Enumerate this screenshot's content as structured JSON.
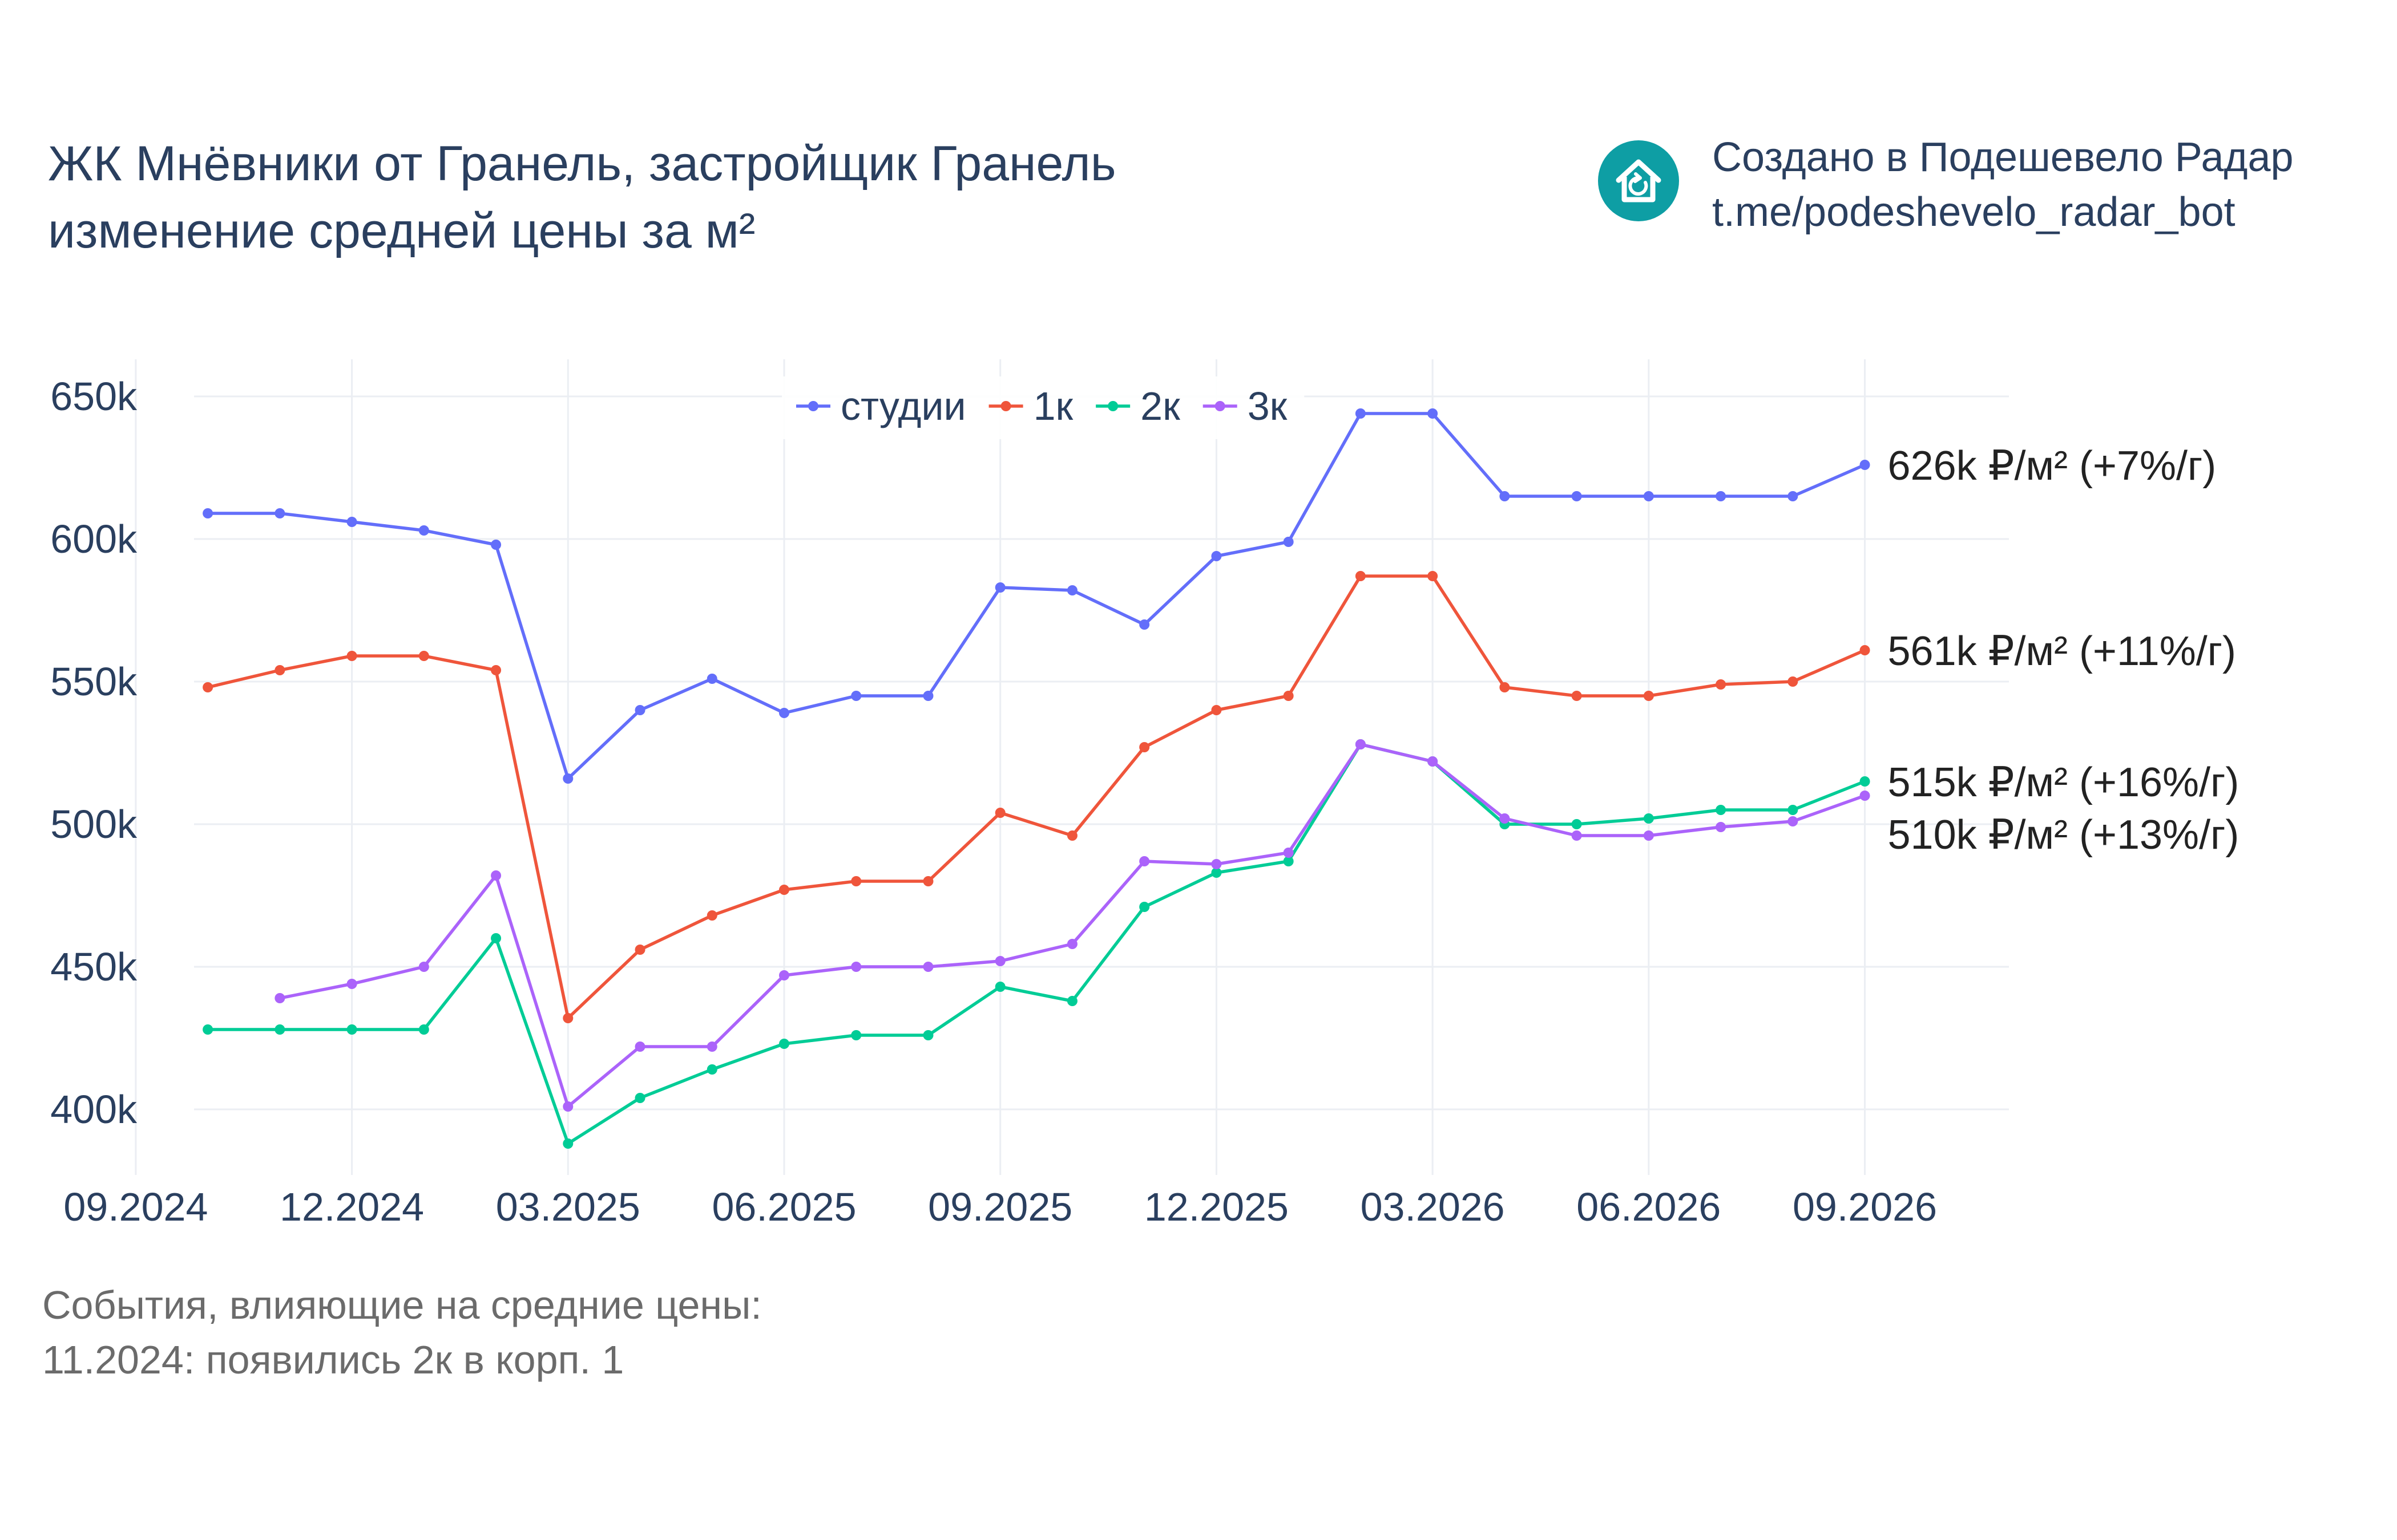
{
  "header": {
    "title_line1": "ЖК Мнёвники от Гранель, застройщик Гранель",
    "title_line2": "изменение средней цены за м²"
  },
  "brand": {
    "line1": "Создано в Подешевело Радар",
    "line2": "t.me/podeshevelo_radar_bot",
    "logo_icon": "house-refresh-icon",
    "logo_color": "#0e9ea4"
  },
  "events": {
    "heading": "События, влияющие на средние цены:",
    "items": [
      "11.2024: появились 2к в корп. 1"
    ]
  },
  "chart_data": {
    "type": "line",
    "x_ticks": [
      "09.2024",
      "12.2024",
      "03.2025",
      "06.2025",
      "09.2025",
      "12.2025",
      "03.2026",
      "06.2026",
      "09.2026"
    ],
    "y_ticks": [
      "400k",
      "450k",
      "500k",
      "550k",
      "600k",
      "650k"
    ],
    "ylim": [
      373000,
      663000
    ],
    "x": [
      "2024-10-01",
      "2024-11-01",
      "2024-12-01",
      "2025-01-01",
      "2025-02-01",
      "2025-03-01",
      "2025-04-01",
      "2025-05-01",
      "2025-06-01",
      "2025-07-01",
      "2025-08-01",
      "2025-09-01",
      "2025-10-01",
      "2025-11-01",
      "2025-12-01",
      "2026-01-01",
      "2026-02-01",
      "2026-03-01",
      "2026-04-01",
      "2026-05-01",
      "2026-06-01",
      "2026-07-01",
      "2026-08-01",
      "2026-09-01"
    ],
    "grid": true,
    "legend_position": "top-center",
    "series": [
      {
        "name": "студии",
        "color": "#636efa",
        "values": [
          609000,
          609000,
          606000,
          603000,
          598000,
          516000,
          540000,
          551000,
          539000,
          545000,
          545000,
          583000,
          582000,
          570000,
          594000,
          599000,
          644000,
          644000,
          615000,
          615000,
          615000,
          615000,
          615000,
          626000
        ],
        "end_label": "626k ₽/м² (+7%/г)"
      },
      {
        "name": "1к",
        "color": "#ef553b",
        "values": [
          548000,
          554000,
          559000,
          559000,
          554000,
          432000,
          456000,
          468000,
          477000,
          480000,
          480000,
          504000,
          496000,
          527000,
          540000,
          545000,
          587000,
          587000,
          548000,
          545000,
          545000,
          549000,
          550000,
          561000
        ],
        "end_label": "561k ₽/м² (+11%/г)"
      },
      {
        "name": "2к",
        "color": "#00cc96",
        "values": [
          428000,
          428000,
          428000,
          428000,
          460000,
          388000,
          404000,
          414000,
          423000,
          426000,
          426000,
          443000,
          438000,
          471000,
          483000,
          487000,
          528000,
          522000,
          500000,
          500000,
          502000,
          505000,
          505000,
          515000
        ],
        "end_label": "515k ₽/м² (+16%/г)"
      },
      {
        "name": "3к",
        "color": "#ab63fa",
        "values": [
          null,
          439000,
          444000,
          450000,
          482000,
          401000,
          422000,
          422000,
          447000,
          450000,
          450000,
          452000,
          458000,
          487000,
          486000,
          490000,
          528000,
          522000,
          502000,
          496000,
          496000,
          499000,
          501000,
          510000
        ],
        "end_label": "510k ₽/м² (+13%/г)"
      }
    ]
  }
}
